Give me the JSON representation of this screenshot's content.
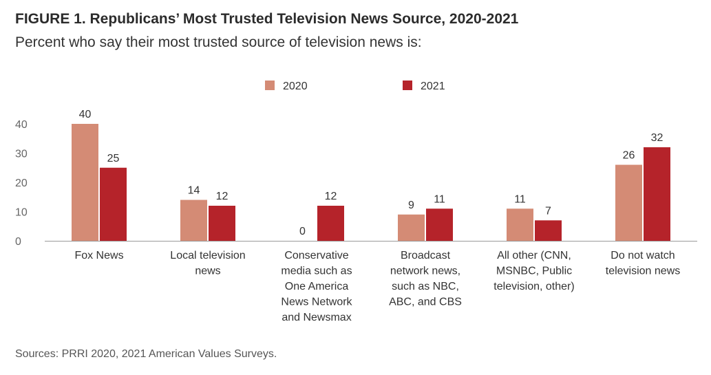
{
  "header": {
    "title": "FIGURE 1.  Republicans’ Most Trusted Television News Source, 2020-2021",
    "subtitle": "Percent who say their most trusted source of television news is:"
  },
  "source": "Sources: PRRI 2020, 2021 American Values Surveys.",
  "colors": {
    "series_2020": "#d48b75",
    "series_2021": "#b5232a",
    "axis": "#999999"
  },
  "chart_data": {
    "type": "bar",
    "title": "Republicans’ Most Trusted Television News Source, 2020-2021",
    "xlabel": "",
    "ylabel": "",
    "ylim": [
      0,
      40
    ],
    "yticks": [
      0,
      10,
      20,
      30,
      40
    ],
    "grid": false,
    "legend_position": "top-center",
    "categories": [
      [
        "Fox News"
      ],
      [
        "Local television",
        "news"
      ],
      [
        "Conservative",
        "media such as",
        "One America",
        "News Network",
        "and Newsmax"
      ],
      [
        "Broadcast",
        "network news,",
        "such as NBC,",
        "ABC, and CBS"
      ],
      [
        "All other (CNN,",
        "MSNBC, Public",
        "television, other)"
      ],
      [
        "Do not watch",
        "television news"
      ]
    ],
    "series": [
      {
        "name": "2020",
        "values": [
          40,
          14,
          0,
          9,
          11,
          26
        ]
      },
      {
        "name": "2021",
        "values": [
          25,
          12,
          12,
          11,
          7,
          32
        ]
      }
    ]
  }
}
